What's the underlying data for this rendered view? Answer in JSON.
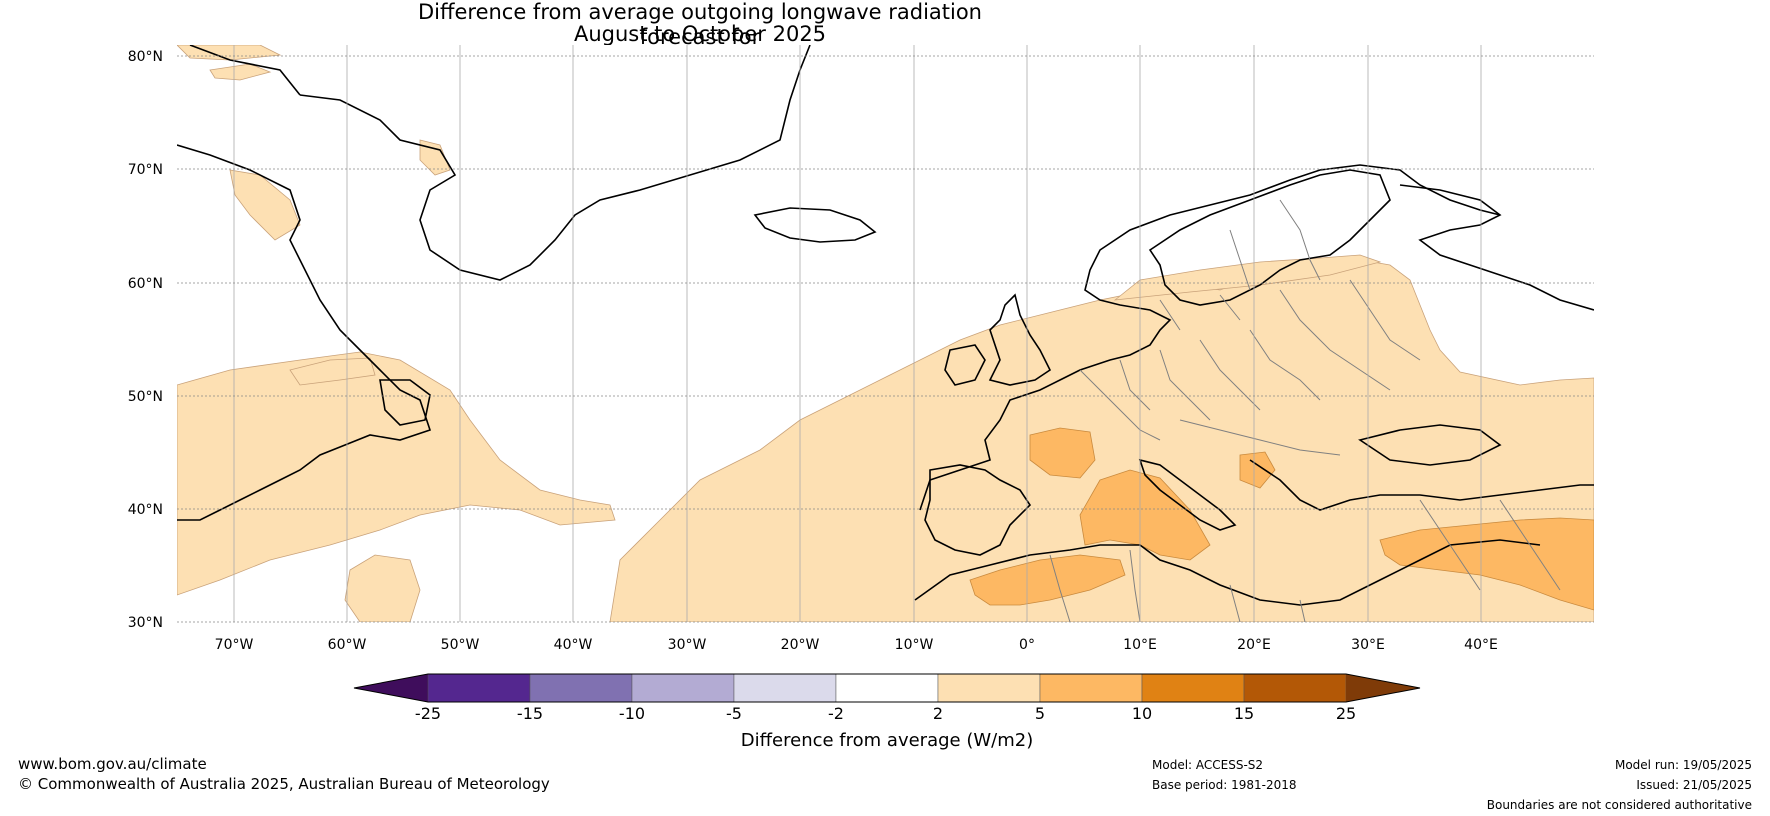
{
  "title": {
    "line1": "Difference from average outgoing longwave radiation forecast for",
    "line2": "August to October 2025"
  },
  "axes": {
    "lat_labels": [
      "80°N",
      "70°N",
      "60°N",
      "50°N",
      "40°N",
      "30°N"
    ],
    "lon_labels": [
      "70°W",
      "60°W",
      "50°W",
      "40°W",
      "30°W",
      "20°W",
      "10°W",
      "0°",
      "10°E",
      "20°E",
      "30°E",
      "40°E"
    ]
  },
  "colorbar": {
    "tick_labels": [
      "-25",
      "-15",
      "-10",
      "-5",
      "-2",
      "2",
      "5",
      "10",
      "15",
      "25"
    ],
    "colors": [
      "#3f0d5c",
      "#54278f",
      "#8071b1",
      "#b3abd3",
      "#dbdaeb",
      "#ffffff",
      "#fde0b3",
      "#fdb863",
      "#e08214",
      "#b35806",
      "#7f3b08"
    ],
    "label": "Difference from average (W/m2)"
  },
  "footer": {
    "url": "www.bom.gov.au/climate",
    "copyright": "© Commonwealth of Australia 2025, Australian Bureau of Meteorology",
    "model": "Model: ACCESS-S2",
    "base_period": "Base period: 1981-2018",
    "model_run": "Model run: 19/05/2025",
    "issued": "Issued: 21/05/2025",
    "disclaimer": "Boundaries are not considered authoritative"
  }
}
